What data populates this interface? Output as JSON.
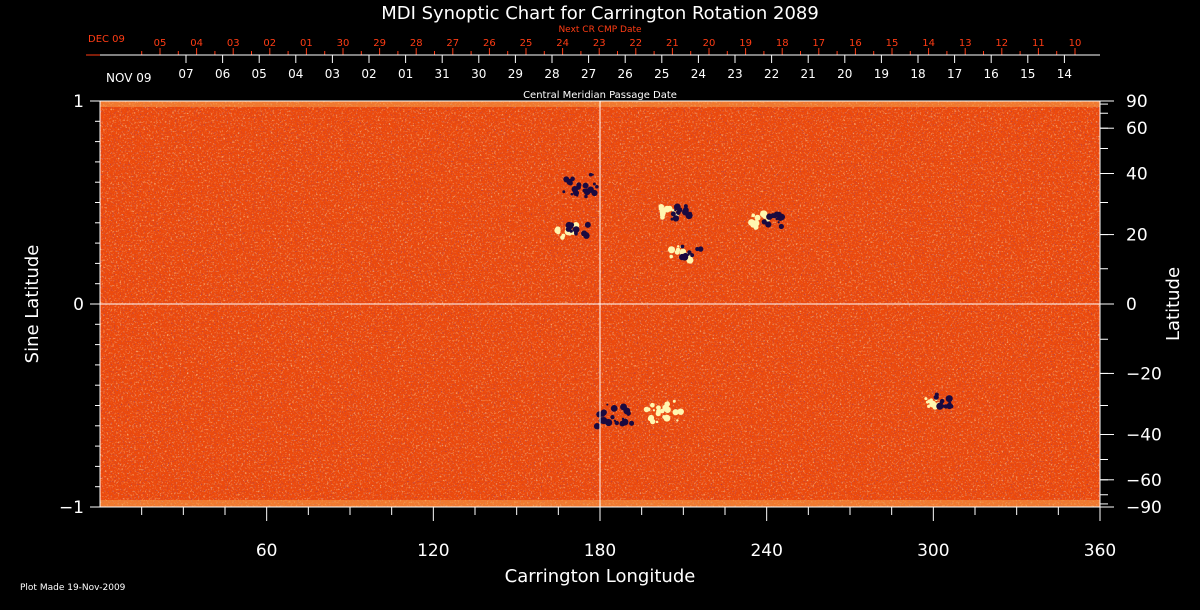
{
  "chart_data": {
    "type": "heatmap",
    "title": "MDI Synoptic Chart for Carrington Rotation 2089",
    "xlabel": "Carrington Longitude",
    "ylabel_left": "Sine Latitude",
    "ylabel_right": "Latitude",
    "xlim": [
      0,
      360
    ],
    "ylim_sine": [
      -1,
      1
    ],
    "x_ticks": [
      60,
      120,
      180,
      240,
      300,
      360
    ],
    "y_ticks_left": [
      {
        "value": 1,
        "label": "1"
      },
      {
        "value": 0,
        "label": "0"
      },
      {
        "value": -1,
        "label": "−1"
      }
    ],
    "y_ticks_right": [
      90,
      60,
      40,
      20,
      0,
      -20,
      -40,
      -60,
      -90
    ],
    "top_axis_red": {
      "caption": "Next CR CMP Date",
      "start_label": "DEC 09",
      "labels": [
        "05",
        "04",
        "03",
        "02",
        "01",
        "30",
        "29",
        "28",
        "27",
        "26",
        "25",
        "24",
        "23",
        "22",
        "21",
        "20",
        "19",
        "18",
        "17",
        "16",
        "15",
        "14",
        "13",
        "12",
        "11",
        "10"
      ]
    },
    "top_axis_white": {
      "caption": "Central Meridian Passage Date",
      "start_label": "NOV 09",
      "labels": [
        "07",
        "06",
        "05",
        "04",
        "03",
        "02",
        "01",
        "31",
        "30",
        "29",
        "28",
        "27",
        "26",
        "25",
        "24",
        "23",
        "22",
        "21",
        "20",
        "19",
        "18",
        "17",
        "16",
        "15",
        "14"
      ]
    },
    "reference_lines": {
      "longitude": 180,
      "sine_latitude": 0
    },
    "colors": {
      "background_field": "#f04a0a",
      "positive_polarity": "#fff6b0",
      "negative_polarity": "#1a0a40",
      "axis": "#ffffff",
      "red_axis": "#ff3c14"
    },
    "active_regions": [
      {
        "lon": 173,
        "sinlat": 0.58,
        "polarity": "negative"
      },
      {
        "lon": 170,
        "sinlat": 0.36,
        "polarity": "mixed"
      },
      {
        "lon": 207,
        "sinlat": 0.45,
        "polarity": "mixed"
      },
      {
        "lon": 211,
        "sinlat": 0.25,
        "polarity": "mixed"
      },
      {
        "lon": 240,
        "sinlat": 0.41,
        "polarity": "mixed"
      },
      {
        "lon": 185,
        "sinlat": -0.55,
        "polarity": "negative"
      },
      {
        "lon": 203,
        "sinlat": -0.52,
        "polarity": "positive"
      },
      {
        "lon": 302,
        "sinlat": -0.48,
        "polarity": "mixed"
      }
    ]
  },
  "footer": {
    "plot_made": "Plot Made 19-Nov-2009"
  }
}
